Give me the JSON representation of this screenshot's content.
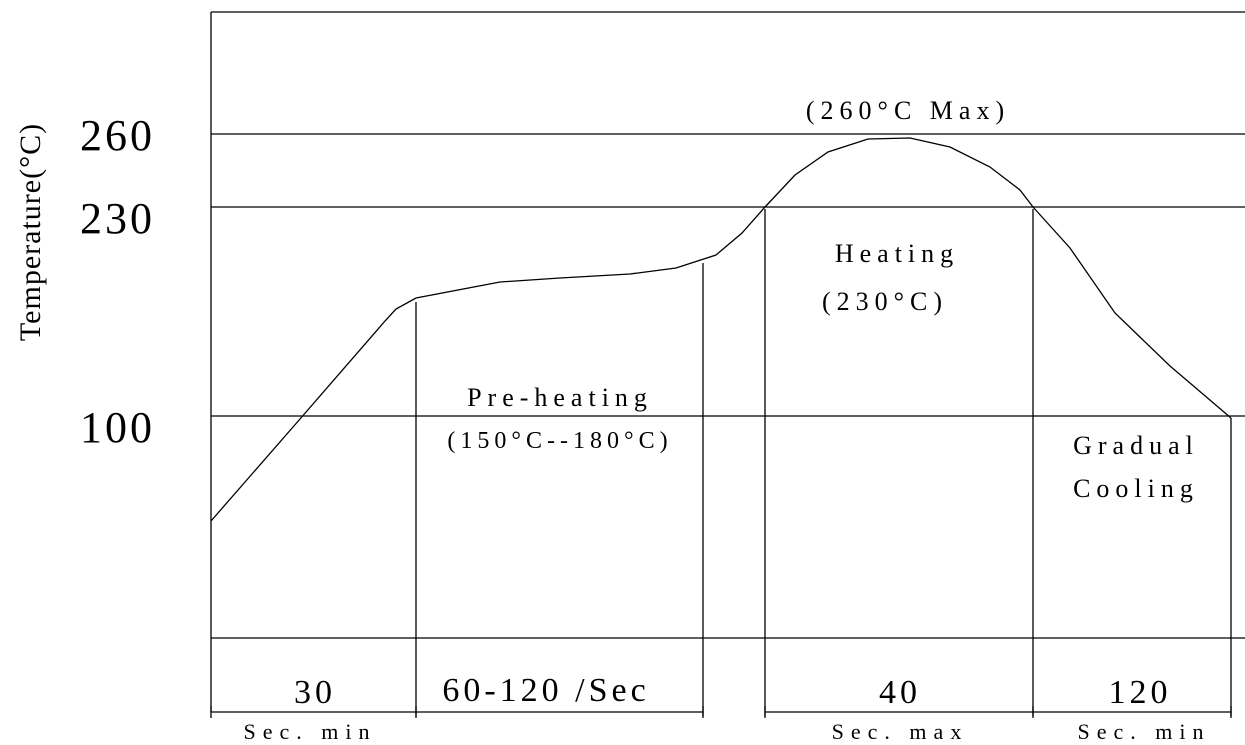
{
  "y_axis_label": "Temperature(°C)",
  "y_ticks": [
    "260",
    "230",
    "100"
  ],
  "peak_note": "(260°C Max)",
  "zones": {
    "preheat": {
      "name": "Pre-heating",
      "range": "(150°C--180°C)"
    },
    "heating": {
      "name": "Heating",
      "temp": "(230°C)"
    },
    "cooling": {
      "line1": "Gradual",
      "line2": "Cooling"
    }
  },
  "durations": [
    {
      "value": "30",
      "unit": "Sec. min"
    },
    {
      "value": "60-120 /Sec",
      "unit": ""
    },
    {
      "value": "40",
      "unit": "Sec. max"
    },
    {
      "value": "120",
      "unit": "Sec. min"
    }
  ]
}
